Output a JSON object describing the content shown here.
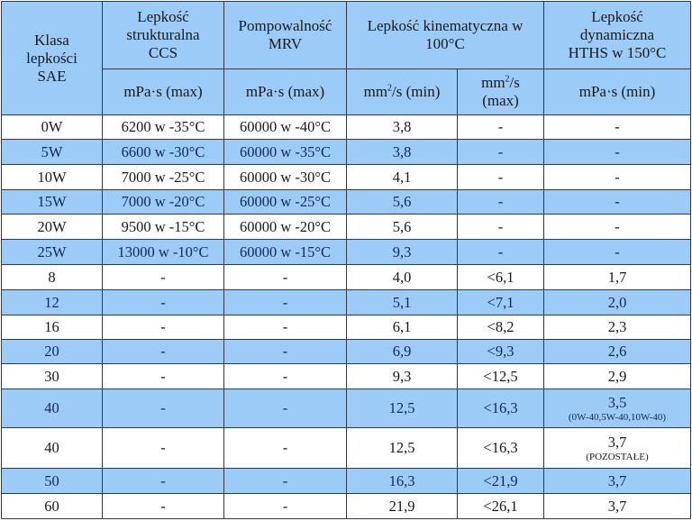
{
  "header": {
    "klasa": "Klasa lepkości SAE",
    "ccs": "Lepkość strukturalna CCS",
    "mrv": "Pompowalność MRV",
    "kin": "Lepkość kinematyczna w 100°C",
    "hths": "Lepkość dynamiczna HTHS w 150°C",
    "ccs_unit": "mPa·s (max)",
    "mrv_unit": "mPa·s (max)",
    "kin_min_unit_pre": "mm",
    "kin_min_unit_sup": "2",
    "kin_min_unit_post": "/s (min)",
    "kin_max_unit_pre": "mm",
    "kin_max_unit_sup": "2",
    "kin_max_unit_post": "/s (max)",
    "hths_unit": "mPa·s (min)"
  },
  "colors": {
    "header_bg": "#9ccbf8",
    "stripe_bg": "#9ccbf8",
    "border": "#2f3a4a"
  },
  "rows": [
    {
      "cls": "0W",
      "ccs": "6200 w -35°C",
      "mrv": "60000 w -40°C",
      "kmin": "3,8",
      "kmax": "-",
      "hths": "-",
      "note": ""
    },
    {
      "cls": "5W",
      "ccs": "6600 w -30°C",
      "mrv": "60000 w -35°C",
      "kmin": "3,8",
      "kmax": "-",
      "hths": "-",
      "note": ""
    },
    {
      "cls": "10W",
      "ccs": "7000 w -25°C",
      "mrv": "60000 w -30°C",
      "kmin": "4,1",
      "kmax": "-",
      "hths": "-",
      "note": ""
    },
    {
      "cls": "15W",
      "ccs": "7000 w -20°C",
      "mrv": "60000 w -25°C",
      "kmin": "5,6",
      "kmax": "-",
      "hths": "-",
      "note": ""
    },
    {
      "cls": "20W",
      "ccs": "9500 w -15°C",
      "mrv": "60000 w -20°C",
      "kmin": "5,6",
      "kmax": "-",
      "hths": "-",
      "note": ""
    },
    {
      "cls": "25W",
      "ccs": "13000 w -10°C",
      "mrv": "60000 w -15°C",
      "kmin": "9,3",
      "kmax": "-",
      "hths": "-",
      "note": ""
    },
    {
      "cls": "8",
      "ccs": "-",
      "mrv": "-",
      "kmin": "4,0",
      "kmax": "<6,1",
      "hths": "1,7",
      "note": ""
    },
    {
      "cls": "12",
      "ccs": "-",
      "mrv": "-",
      "kmin": "5,1",
      "kmax": "<7,1",
      "hths": "2,0",
      "note": ""
    },
    {
      "cls": "16",
      "ccs": "-",
      "mrv": "-",
      "kmin": "6,1",
      "kmax": "<8,2",
      "hths": "2,3",
      "note": ""
    },
    {
      "cls": "20",
      "ccs": "-",
      "mrv": "-",
      "kmin": "6,9",
      "kmax": "<9,3",
      "hths": "2,6",
      "note": ""
    },
    {
      "cls": "30",
      "ccs": "-",
      "mrv": "-",
      "kmin": "9,3",
      "kmax": "<12,5",
      "hths": "2,9",
      "note": ""
    },
    {
      "cls": "40",
      "ccs": "-",
      "mrv": "-",
      "kmin": "12,5",
      "kmax": "<16,3",
      "hths": "3,5",
      "note": "(0W-40,5W-40,10W-40)"
    },
    {
      "cls": "40",
      "ccs": "-",
      "mrv": "-",
      "kmin": "12,5",
      "kmax": "<16,3",
      "hths": "3,7",
      "note": "(POZOSTAŁE)"
    },
    {
      "cls": "50",
      "ccs": "-",
      "mrv": "-",
      "kmin": "16,3",
      "kmax": "<21,9",
      "hths": "3,7",
      "note": ""
    },
    {
      "cls": "60",
      "ccs": "-",
      "mrv": "-",
      "kmin": "21,9",
      "kmax": "<26,1",
      "hths": "3,7",
      "note": ""
    }
  ]
}
